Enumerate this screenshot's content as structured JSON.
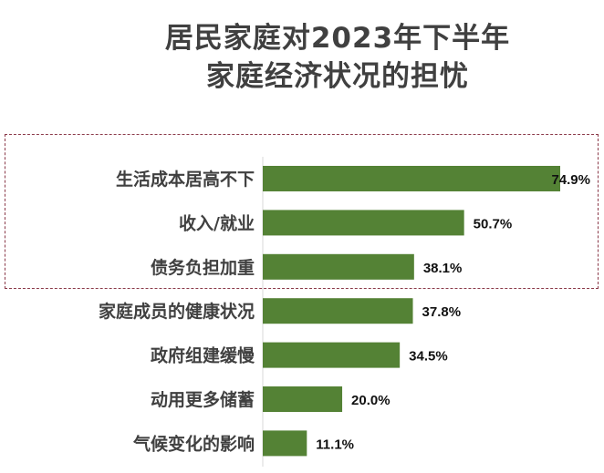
{
  "chart_data": {
    "type": "bar",
    "orientation": "horizontal",
    "title": "居民家庭对2023年下半年\n家庭经济状况的担忧",
    "title_lines": [
      "居民家庭对2023年下半年",
      "家庭经济状况的担忧"
    ],
    "categories": [
      "生活成本居高不下",
      "收入/就业",
      "债务负担加重",
      "家庭成员的健康状况",
      "政府组建缓慢",
      "动用更多储蓄",
      "气候变化的影响"
    ],
    "values": [
      74.9,
      50.7,
      38.1,
      37.8,
      34.5,
      20.0,
      11.1
    ],
    "value_labels": [
      "74.9%",
      "50.7%",
      "38.1%",
      "37.8%",
      "34.5%",
      "20.0%",
      "11.1%"
    ],
    "unit": "%",
    "xlim": [
      0,
      75
    ],
    "grid": false,
    "legend": "none",
    "highlighted_categories": [
      "生活成本居高不下",
      "收入/就业",
      "债务负担加重"
    ],
    "colors": {
      "bar": "#548235",
      "highlight_box": "#8b3a4a",
      "text": "#404040"
    }
  }
}
